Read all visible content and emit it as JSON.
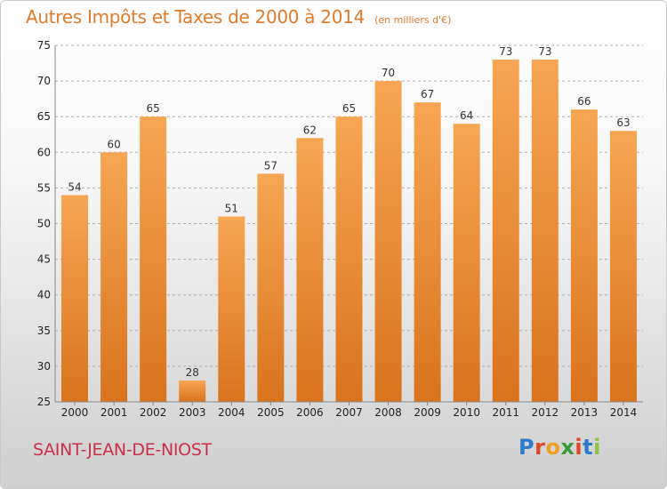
{
  "header": {
    "title": "Autres Impôts et Taxes de 2000 à 2014",
    "subtitle": "(en milliers d'€)"
  },
  "footer": {
    "commune": "SAINT-JEAN-DE-NIOST",
    "brand_letters": [
      "P",
      "r",
      "o",
      "x",
      "i",
      "t",
      "i"
    ],
    "brand_colors": [
      "#2a7bd0",
      "#e0462a",
      "#f0a020",
      "#3a9a3a",
      "#e0462a",
      "#2a7bd0",
      "#8cc63f"
    ]
  },
  "colors": {
    "bar_light": "#f7a654",
    "bar_dark": "#d9731c",
    "title": "#e07b2a",
    "grid": "#b0b0b0"
  },
  "chart_data": {
    "type": "bar",
    "title": "Autres Impôts et Taxes de 2000 à 2014",
    "subtitle": "(en milliers d'€)",
    "xlabel": "",
    "ylabel": "",
    "categories": [
      "2000",
      "2001",
      "2002",
      "2003",
      "2004",
      "2005",
      "2006",
      "2007",
      "2008",
      "2009",
      "2010",
      "2011",
      "2012",
      "2013",
      "2014"
    ],
    "values": [
      54,
      60,
      65,
      28,
      51,
      57,
      62,
      65,
      70,
      67,
      64,
      73,
      73,
      66,
      63
    ],
    "ylim": [
      25,
      75
    ],
    "yticks": [
      25,
      30,
      35,
      40,
      45,
      50,
      55,
      60,
      65,
      70,
      75
    ],
    "grid": true,
    "data_labels": true
  }
}
